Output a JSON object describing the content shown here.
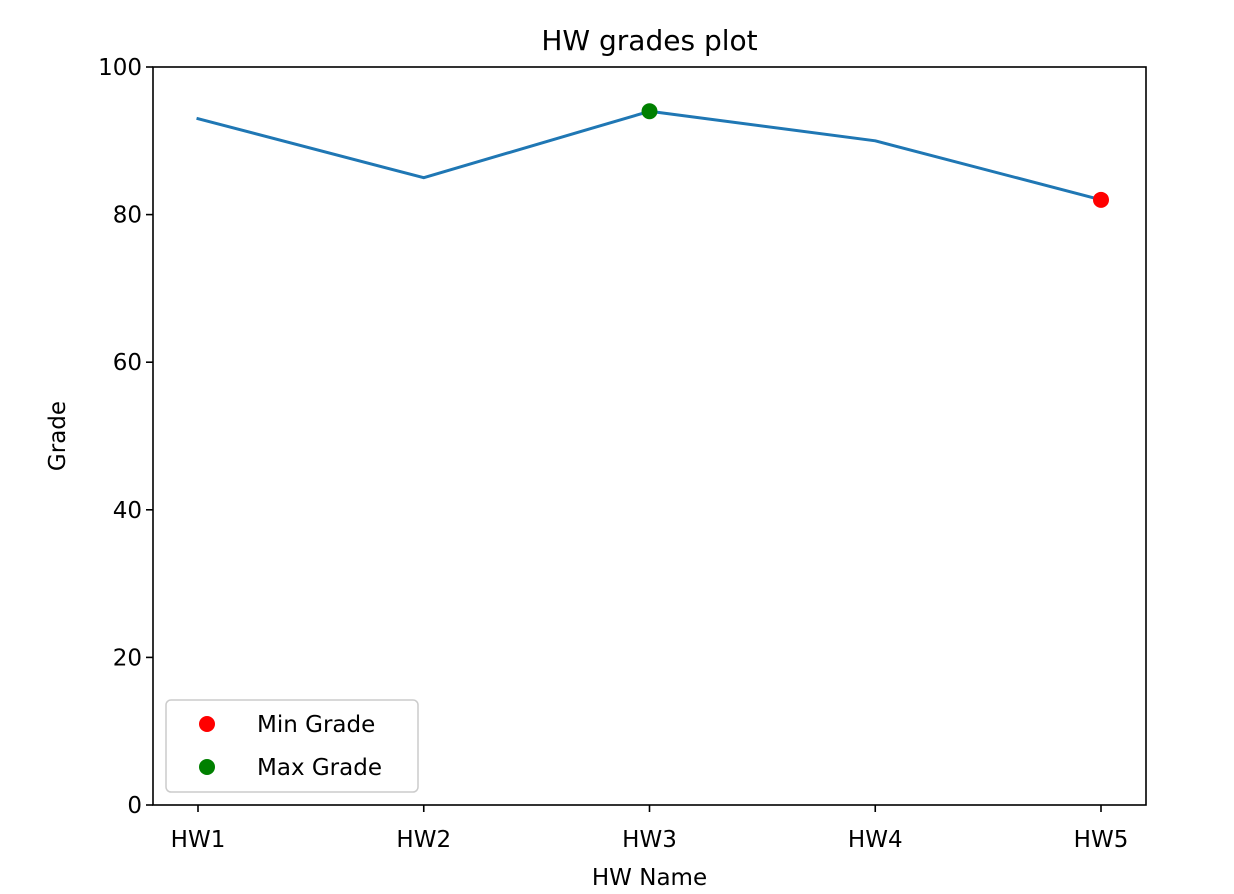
{
  "chart_data": {
    "type": "line",
    "title": "HW grades plot",
    "xlabel": "HW Name",
    "ylabel": "Grade",
    "categories": [
      "HW1",
      "HW2",
      "HW3",
      "HW4",
      "HW5"
    ],
    "series": [
      {
        "values": [
          93,
          85,
          94,
          90,
          82
        ],
        "color": "#1f77b4"
      }
    ],
    "markers": [
      {
        "name": "Min Grade",
        "x": "HW5",
        "y": 82,
        "color": "#ff0000"
      },
      {
        "name": "Max Grade",
        "x": "HW3",
        "y": 94,
        "color": "#008000"
      }
    ],
    "ylim": [
      0,
      100
    ],
    "yticks": [
      0,
      20,
      40,
      60,
      80,
      100
    ],
    "yticklabels": [
      "0",
      "20",
      "40",
      "60",
      "80",
      "100"
    ],
    "grid": false,
    "legend_position": "lower-left"
  }
}
